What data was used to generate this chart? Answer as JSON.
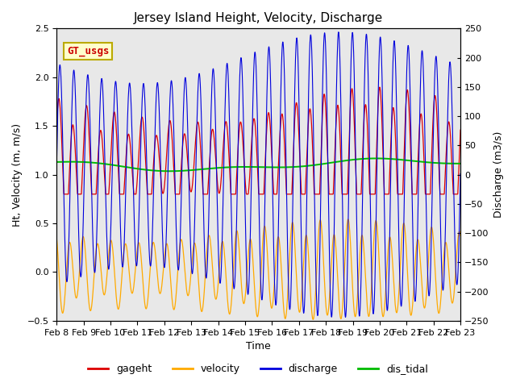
{
  "title": "Jersey Island Height, Velocity, Discharge",
  "xlabel": "Time",
  "ylabel_left": "Ht, Velocity (m, m/s)",
  "ylabel_right": "Discharge (m3/s)",
  "ylim_left": [
    -0.5,
    2.5
  ],
  "ylim_right": [
    -250,
    250
  ],
  "xtick_labels": [
    "Feb 8",
    "Feb 9",
    "Feb 10",
    "Feb 11",
    "Feb 12",
    "Feb 13",
    "Feb 14",
    "Feb 15",
    "Feb 16",
    "Feb 17",
    "Feb 18",
    "Feb 19",
    "Feb 20",
    "Feb 21",
    "Feb 22",
    "Feb 23"
  ],
  "legend_label": "GT_usgs",
  "legend_bg": "#ffffcc",
  "legend_border": "#bbaa00",
  "series": {
    "gageht": {
      "color": "#dd0000",
      "label": "gageht"
    },
    "velocity": {
      "color": "#ffaa00",
      "label": "velocity"
    },
    "discharge": {
      "color": "#0000dd",
      "label": "discharge"
    },
    "dis_tidal": {
      "color": "#00bb00",
      "label": "dis_tidal"
    }
  },
  "bg_color": "#e8e8e8",
  "fig_bg": "#ffffff",
  "title_fontsize": 11,
  "axis_fontsize": 9,
  "tick_fontsize": 8,
  "legend_fontsize": 9
}
